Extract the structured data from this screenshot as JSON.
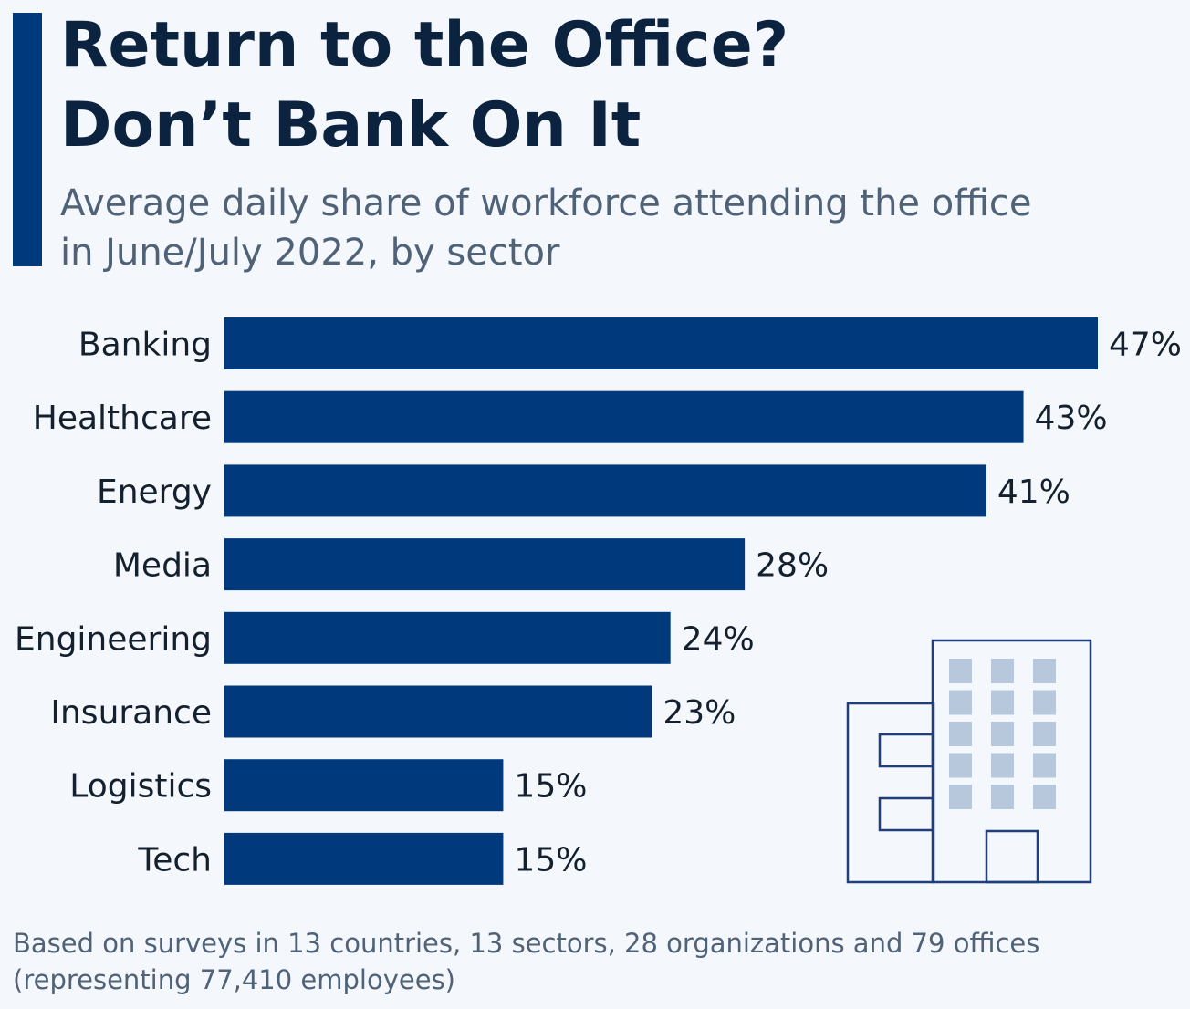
{
  "header": {
    "title_lines": [
      "Return to the Office?",
      "Don’t Bank On It"
    ],
    "subtitle_lines": [
      "Average daily share of workforce attending the office",
      "in June/July 2022, by sector"
    ]
  },
  "footnote_lines": [
    "Based on surveys in 13 countries, 13 sectors, 28 organizations and 79 offices",
    "(representing 77,410 employees)"
  ],
  "chart_data": {
    "type": "bar",
    "orientation": "horizontal",
    "categories": [
      "Banking",
      "Healthcare",
      "Energy",
      "Media",
      "Engineering",
      "Insurance",
      "Logistics",
      "Tech"
    ],
    "values": [
      47,
      43,
      41,
      28,
      24,
      23,
      15,
      15
    ],
    "value_labels": [
      "47%",
      "43%",
      "41%",
      "28%",
      "24%",
      "23%",
      "15%",
      "15%"
    ],
    "unit": "%",
    "xlim": [
      0,
      47
    ],
    "grid": false,
    "legend": "none",
    "bar_color": "#003a7d"
  },
  "colors": {
    "accent": "#003a7d",
    "title": "#0c2340",
    "subtitle": "#4f6278",
    "background": "#f4f7fb",
    "icon_stroke": "#1f3f7a",
    "icon_window": "#b8c8dc"
  },
  "decoration": {
    "icon": "office-building-icon"
  }
}
